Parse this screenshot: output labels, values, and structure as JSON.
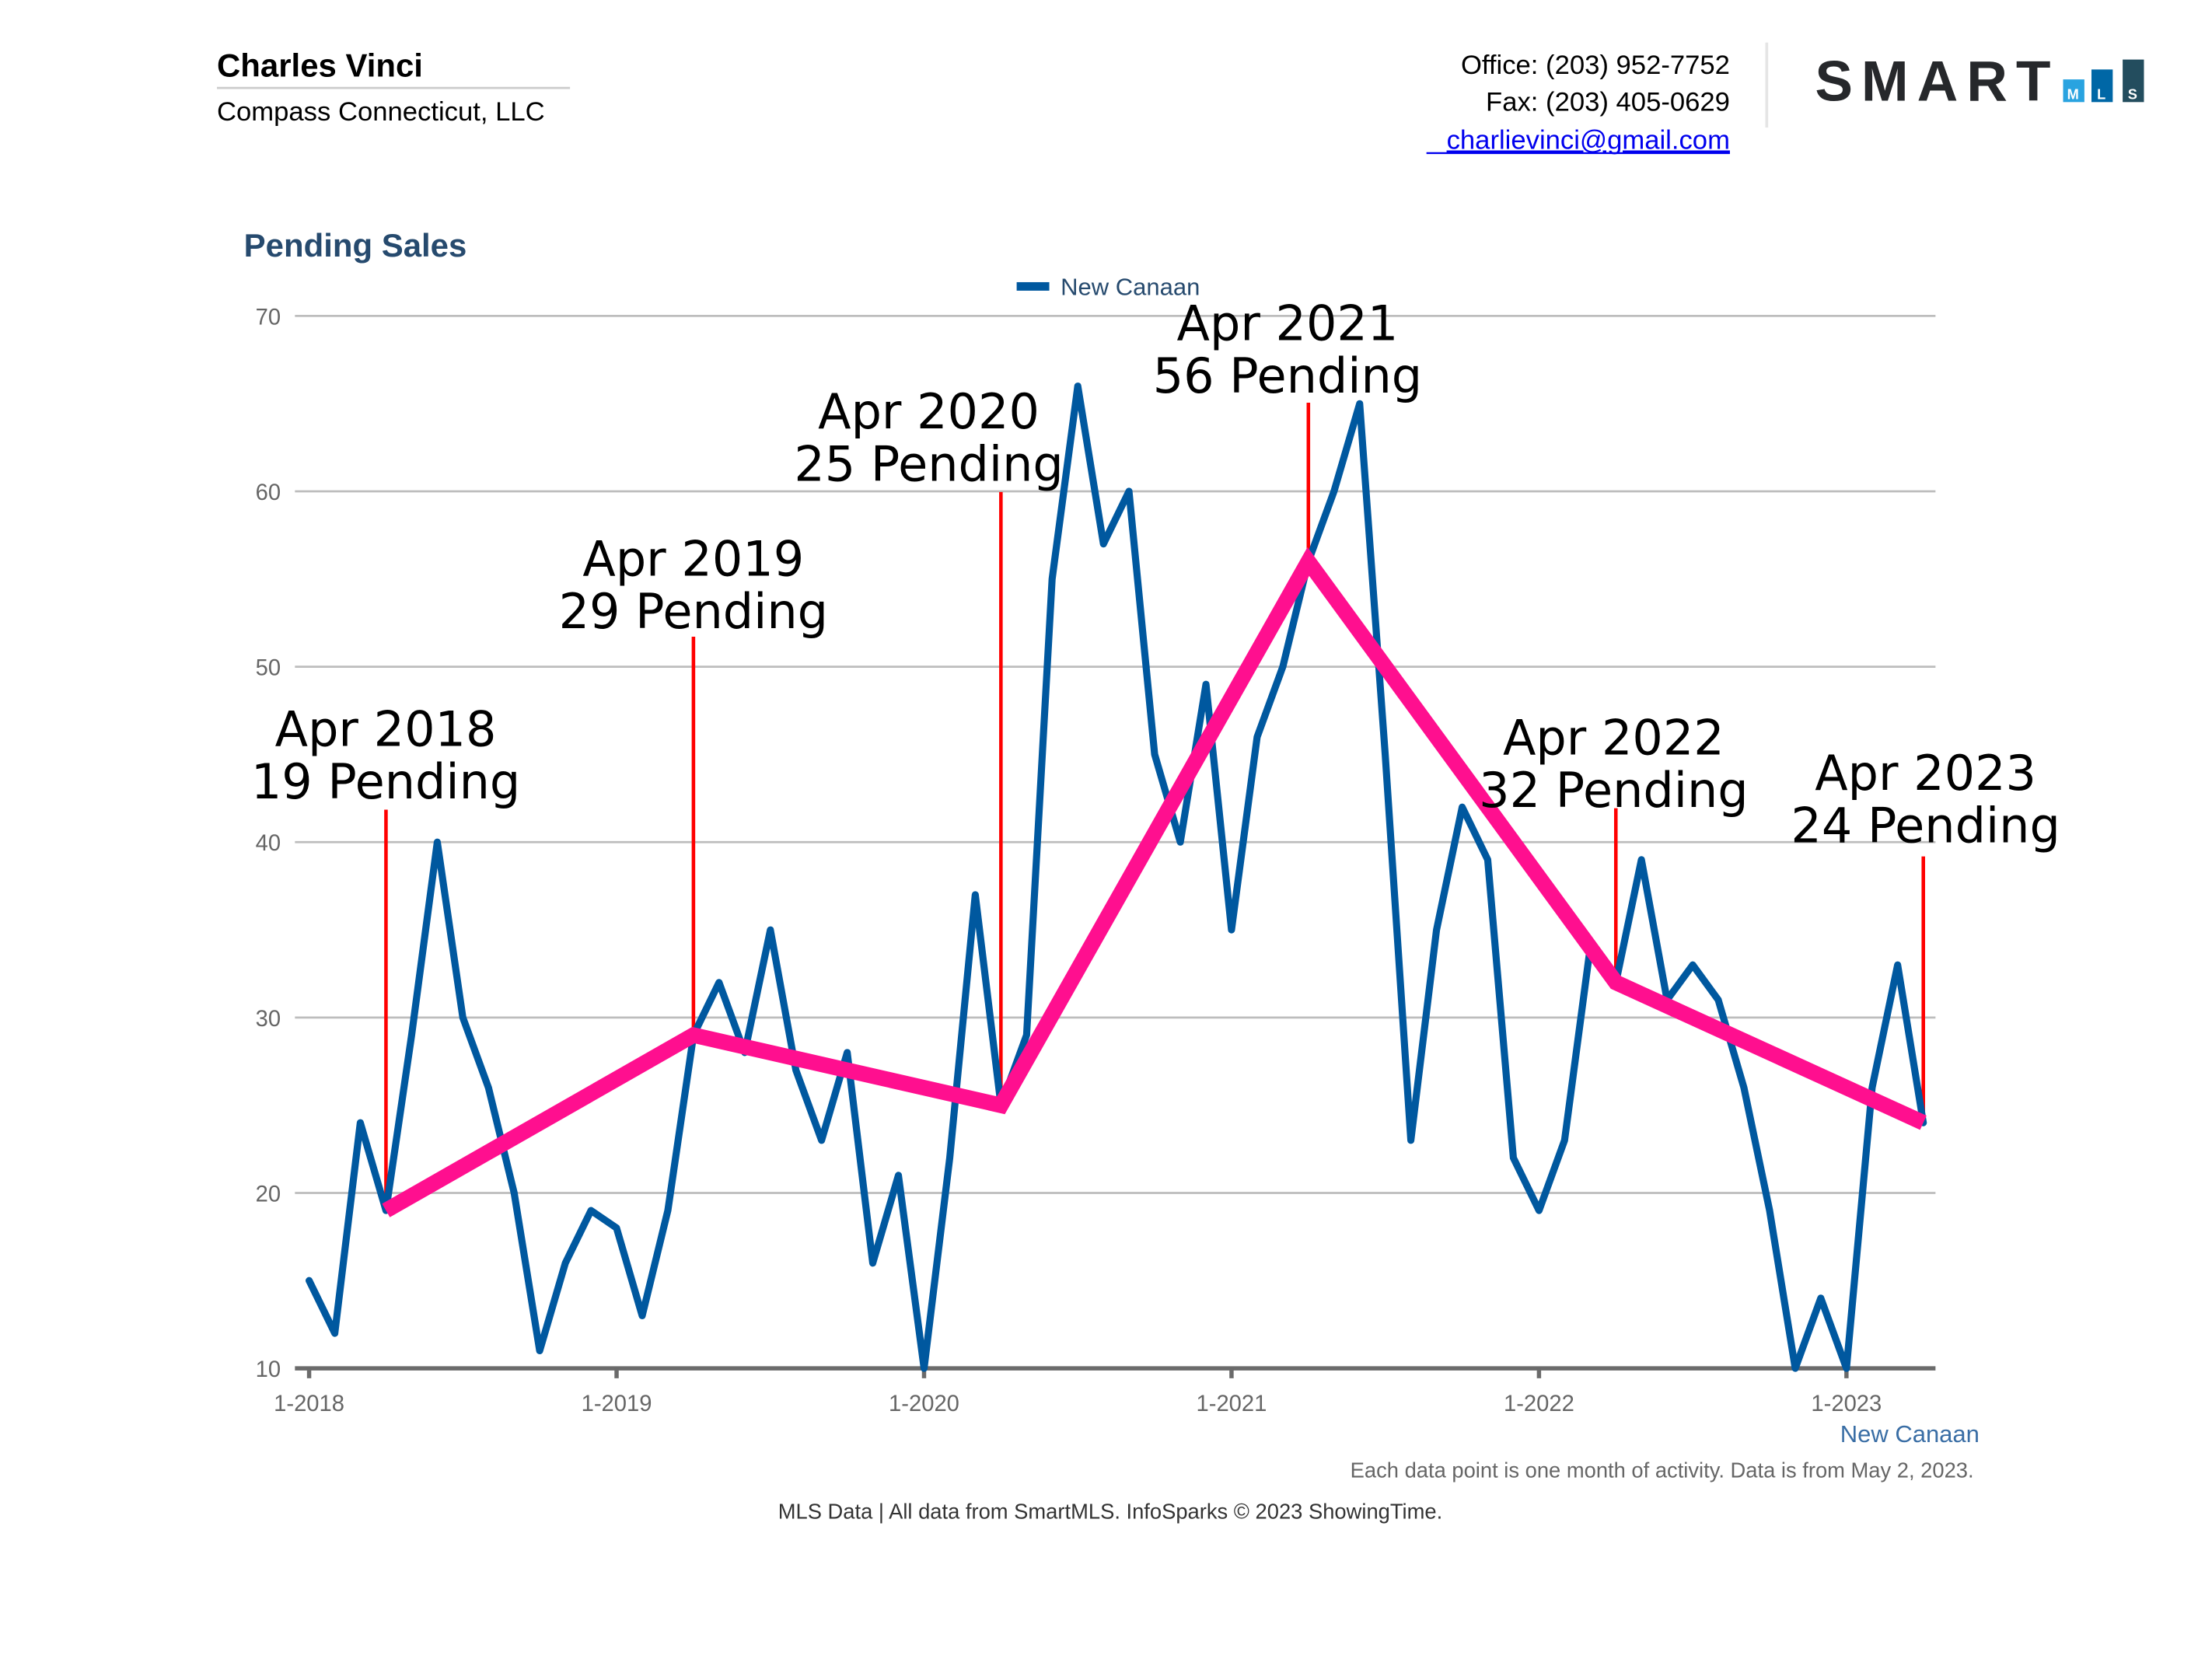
{
  "header": {
    "agent_name": "Charles Vinci",
    "company": "Compass Connecticut, LLC",
    "office": "Office: (203) 952-7752",
    "fax": "Fax: (203) 405-0629",
    "email": "charlievinci@gmail.com",
    "logo": {
      "text": "SMART",
      "blocks": [
        "M",
        "L",
        "S"
      ],
      "colors": [
        "#29a3e0",
        "#0067a6",
        "#234d5e"
      ]
    }
  },
  "footer": {
    "note": "Each data point is one month of activity. Data is from May 2, 2023.",
    "credit": "MLS Data | All data from SmartMLS. InfoSparks © 2023 ShowingTime."
  },
  "colors": {
    "series": "#00589f",
    "trend": "#ff0f8f",
    "annotation_line": "#ff0000",
    "title": "#264a6e"
  },
  "chart_data": {
    "type": "line",
    "title": "Pending Sales",
    "legend": {
      "entries": [
        "New Canaan"
      ],
      "placement": "top-center"
    },
    "x_axis_caption": "New Canaan",
    "xtick_labels": [
      "1-2018",
      "1-2019",
      "1-2020",
      "1-2021",
      "1-2022",
      "1-2023"
    ],
    "ytick_labels": [
      "10",
      "20",
      "30",
      "40",
      "50",
      "60",
      "70"
    ],
    "ylim": [
      10,
      70
    ],
    "xlim": [
      "2018-01",
      "2023-04"
    ],
    "grid": true,
    "series": [
      {
        "name": "New Canaan",
        "x_start": "2018-01",
        "interval": "month",
        "values": [
          15,
          12,
          24,
          19,
          29,
          40,
          30,
          26,
          20,
          11,
          16,
          19,
          18,
          13,
          19,
          29,
          32,
          28,
          35,
          27,
          23,
          28,
          16,
          21,
          10,
          22,
          37,
          25,
          29,
          55,
          66,
          57,
          60,
          45,
          40,
          49,
          35,
          46,
          50,
          56,
          60,
          65,
          45,
          23,
          35,
          42,
          39,
          22,
          19,
          23,
          34,
          32,
          39,
          31,
          33,
          31,
          26,
          19,
          10,
          14,
          10,
          26,
          33,
          24
        ]
      }
    ],
    "trend": {
      "x": [
        "2018-04",
        "2019-04",
        "2020-04",
        "2021-04",
        "2022-04",
        "2023-04"
      ],
      "values": [
        19,
        29,
        25,
        56,
        32,
        24
      ]
    },
    "annotations": [
      {
        "x": "2018-04",
        "line1": "Apr 2018",
        "line2": "19 Pending"
      },
      {
        "x": "2019-04",
        "line1": "Apr 2019",
        "line2": "29 Pending"
      },
      {
        "x": "2020-04",
        "line1": "Apr 2020",
        "line2": "25 Pending"
      },
      {
        "x": "2021-04",
        "line1": "Apr 2021",
        "line2": "56 Pending"
      },
      {
        "x": "2022-04",
        "line1": "Apr 2022",
        "line2": "32 Pending"
      },
      {
        "x": "2023-04",
        "line1": "Apr 2023",
        "line2": "24 Pending"
      }
    ]
  }
}
